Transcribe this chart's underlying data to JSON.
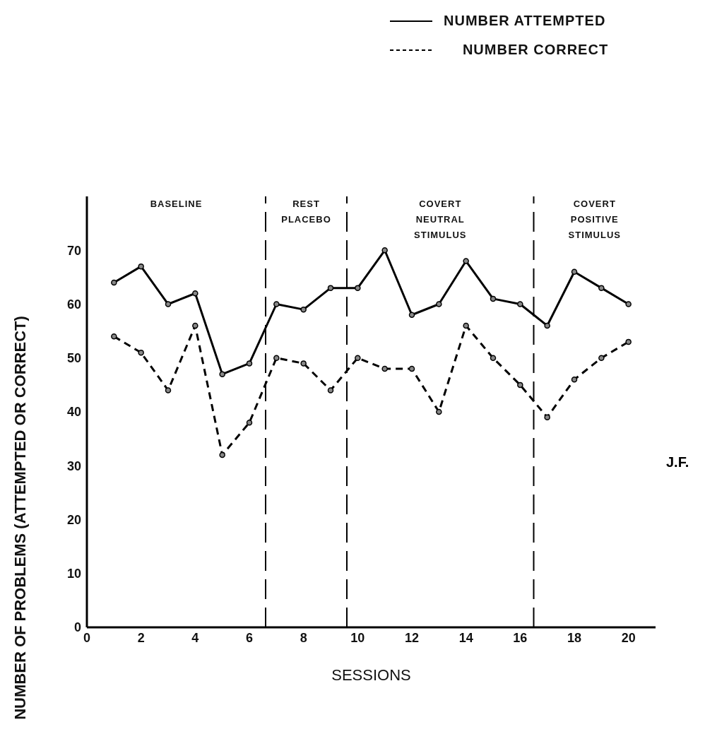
{
  "chart_data": {
    "type": "line",
    "xlabel": "SESSIONS",
    "ylabel": "NUMBER OF PROBLEMS (ATTEMPTED OR CORRECT)",
    "x": [
      1,
      2,
      3,
      4,
      5,
      6,
      7,
      8,
      9,
      10,
      11,
      12,
      13,
      14,
      15,
      16,
      17,
      18,
      19,
      20
    ],
    "series": [
      {
        "name": "NUMBER ATTEMPTED",
        "color": "#000000",
        "line_style": "solid",
        "values": [
          64,
          67,
          60,
          62,
          47,
          49,
          60,
          59,
          63,
          63,
          70,
          58,
          60,
          68,
          61,
          60,
          56,
          66,
          63,
          60
        ]
      },
      {
        "name": "NUMBER CORRECT",
        "color": "#000000",
        "line_style": "dashed",
        "values": [
          54,
          51,
          44,
          56,
          32,
          38,
          50,
          49,
          44,
          50,
          48,
          48,
          40,
          56,
          50,
          45,
          39,
          46,
          50,
          53
        ]
      }
    ],
    "xlim": [
      0,
      21
    ],
    "xticks": [
      0,
      2,
      4,
      6,
      8,
      10,
      12,
      14,
      16,
      18,
      20
    ],
    "ylim": [
      0,
      80
    ],
    "yticks": [
      0,
      10,
      20,
      30,
      40,
      50,
      60,
      70
    ],
    "grid": false,
    "legend": "top right",
    "marker": "circle",
    "ref_lines": [
      {
        "axis": "x",
        "value": 6.6,
        "line_style": "dashed",
        "color": "#000000"
      },
      {
        "axis": "x",
        "value": 9.6,
        "line_style": "dashed",
        "color": "#000000"
      },
      {
        "axis": "x",
        "value": 16.5,
        "line_style": "dashed",
        "color": "#000000"
      }
    ],
    "annotations": [
      "BASELINE",
      "REST\nPLACEBO",
      "COVERT\nNEUTRAL\nSTIMULUS",
      "COVERT\nPOSITIVE\nSTIMULUS",
      "J.F."
    ]
  }
}
